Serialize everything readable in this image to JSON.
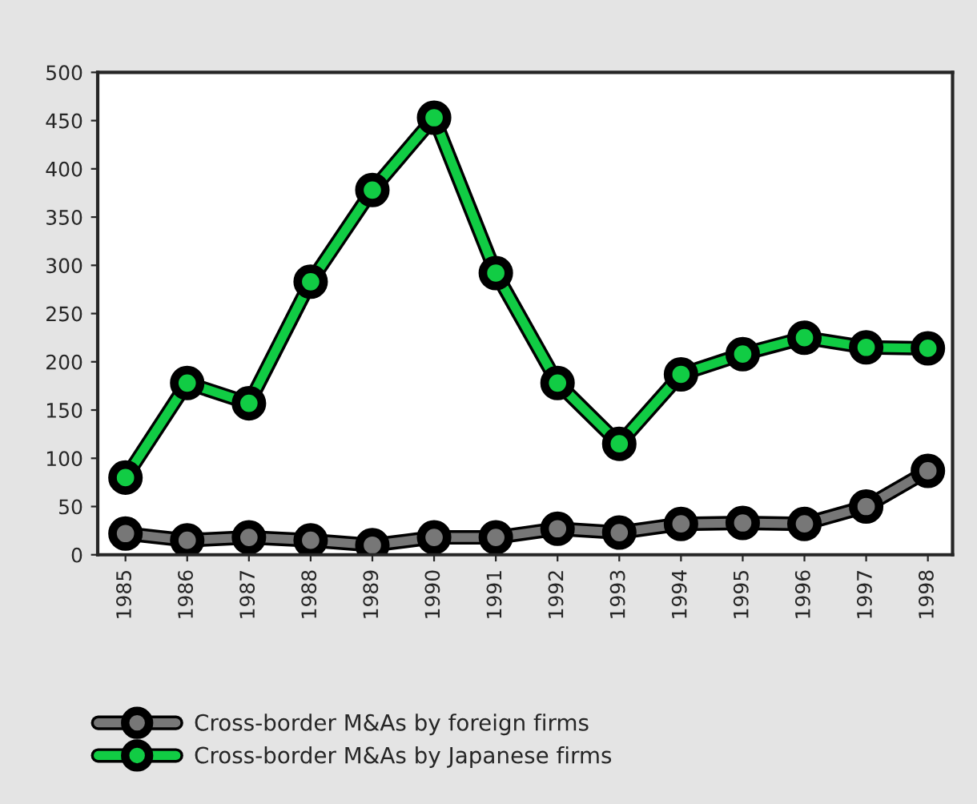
{
  "chart_data": {
    "type": "line",
    "categories": [
      "1985",
      "1986",
      "1987",
      "1988",
      "1989",
      "1990",
      "1991",
      "1992",
      "1993",
      "1994",
      "1995",
      "1996",
      "1997",
      "1998"
    ],
    "series": [
      {
        "name": "Cross-border M&As by foreign firms",
        "color": "#777777",
        "values": [
          22,
          15,
          18,
          15,
          10,
          18,
          18,
          27,
          23,
          32,
          33,
          32,
          50,
          87
        ]
      },
      {
        "name": "Cross-border M&As by Japanese firms",
        "color": "#11cc44",
        "values": [
          80,
          178,
          157,
          283,
          378,
          453,
          292,
          178,
          115,
          187,
          208,
          225,
          215,
          214
        ]
      }
    ],
    "ylim": [
      0,
      500
    ],
    "yticks": [
      0,
      50,
      100,
      150,
      200,
      250,
      300,
      350,
      400,
      450,
      500
    ],
    "marker": "circle",
    "line_style": "solid",
    "grid": false,
    "legend": "bottom"
  }
}
